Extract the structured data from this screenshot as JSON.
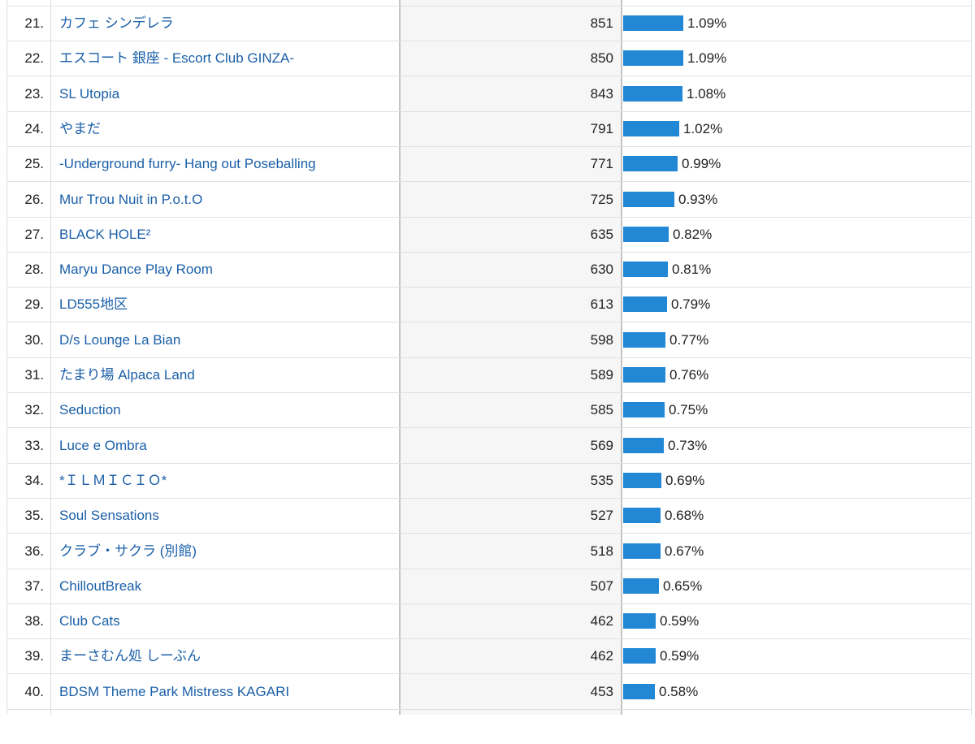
{
  "table": {
    "rows": [
      {
        "rank": "21.",
        "name": "カフェ シンデレラ",
        "value": "851",
        "percent": "1.09%",
        "share": 1.09
      },
      {
        "rank": "22.",
        "name": "エスコート 銀座 - Escort Club GINZA-",
        "value": "850",
        "percent": "1.09%",
        "share": 1.09
      },
      {
        "rank": "23.",
        "name": "SL Utopia",
        "value": "843",
        "percent": "1.08%",
        "share": 1.08
      },
      {
        "rank": "24.",
        "name": "やまだ",
        "value": "791",
        "percent": "1.02%",
        "share": 1.02
      },
      {
        "rank": "25.",
        "name": "-Underground furry- Hang out Poseballing",
        "value": "771",
        "percent": "0.99%",
        "share": 0.99
      },
      {
        "rank": "26.",
        "name": "Mur Trou Nuit in P.o.t.O",
        "value": "725",
        "percent": "0.93%",
        "share": 0.93
      },
      {
        "rank": "27.",
        "name": "BLACK HOLE²",
        "value": "635",
        "percent": "0.82%",
        "share": 0.82
      },
      {
        "rank": "28.",
        "name": "Maryu Dance Play Room",
        "value": "630",
        "percent": "0.81%",
        "share": 0.81
      },
      {
        "rank": "29.",
        "name": "LD555地区",
        "value": "613",
        "percent": "0.79%",
        "share": 0.79
      },
      {
        "rank": "30.",
        "name": "D/s Lounge La Bian",
        "value": "598",
        "percent": "0.77%",
        "share": 0.77
      },
      {
        "rank": "31.",
        "name": "たまり場 Alpaca Land",
        "value": "589",
        "percent": "0.76%",
        "share": 0.76
      },
      {
        "rank": "32.",
        "name": "Seduction",
        "value": "585",
        "percent": "0.75%",
        "share": 0.75
      },
      {
        "rank": "33.",
        "name": "Luce e Ombra",
        "value": "569",
        "percent": "0.73%",
        "share": 0.73
      },
      {
        "rank": "34.",
        "name": "*ＩＬＭＩＣＩＯ*",
        "value": "535",
        "percent": "0.69%",
        "share": 0.69
      },
      {
        "rank": "35.",
        "name": "Soul Sensations",
        "value": "527",
        "percent": "0.68%",
        "share": 0.68
      },
      {
        "rank": "36.",
        "name": "クラブ・サクラ (別館)",
        "value": "518",
        "percent": "0.67%",
        "share": 0.67
      },
      {
        "rank": "37.",
        "name": "ChilloutBreak",
        "value": "507",
        "percent": "0.65%",
        "share": 0.65
      },
      {
        "rank": "38.",
        "name": "Club Cats",
        "value": "462",
        "percent": "0.59%",
        "share": 0.59
      },
      {
        "rank": "39.",
        "name": "まーさむん処 しーぶん",
        "value": "462",
        "percent": "0.59%",
        "share": 0.59
      },
      {
        "rank": "40.",
        "name": "BDSM Theme Park Mistress KAGARI",
        "value": "453",
        "percent": "0.58%",
        "share": 0.58
      }
    ],
    "colors": {
      "bar": "#2288d5",
      "link": "#1a5fa8",
      "text": "#222222"
    }
  }
}
